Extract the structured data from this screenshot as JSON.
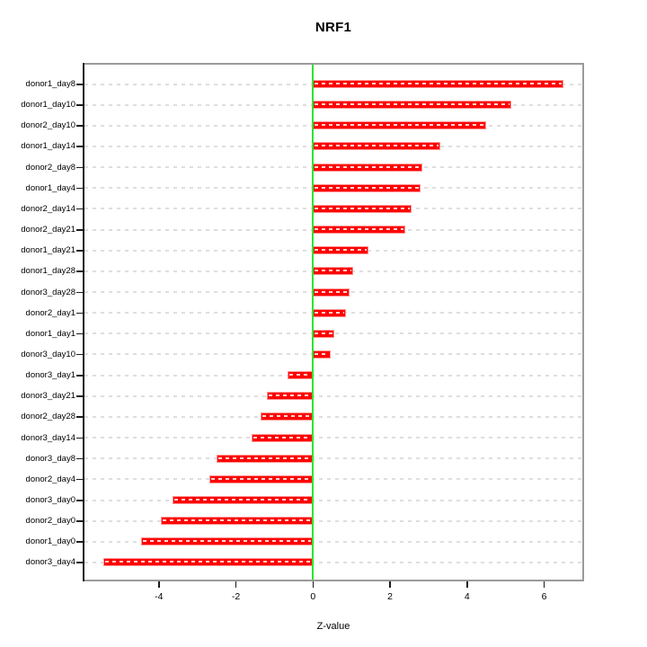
{
  "chart_data": {
    "type": "bar",
    "orientation": "horizontal",
    "title": "NRF1",
    "xlabel": "Z-value",
    "ylabel": "",
    "categories": [
      "donor1_day8",
      "donor1_day10",
      "donor2_day10",
      "donor1_day14",
      "donor2_day8",
      "donor1_day4",
      "donor2_day14",
      "donor2_day21",
      "donor1_day21",
      "donor1_day28",
      "donor3_day28",
      "donor2_day1",
      "donor1_day1",
      "donor3_day10",
      "donor3_day1",
      "donor3_day21",
      "donor2_day28",
      "donor3_day14",
      "donor3_day8",
      "donor2_day4",
      "donor3_day0",
      "donor2_day0",
      "donor1_day0",
      "donor3_day4"
    ],
    "values": [
      6.5,
      5.15,
      4.5,
      3.3,
      2.85,
      2.8,
      2.55,
      2.4,
      1.45,
      1.05,
      0.95,
      0.85,
      0.55,
      0.45,
      -0.65,
      -1.2,
      -1.35,
      -1.6,
      -2.5,
      -2.7,
      -3.65,
      -3.95,
      -4.45,
      -5.45
    ],
    "xlim": [
      -5.93,
      6.99
    ],
    "xticks": [
      -4,
      -2,
      0,
      2,
      4,
      6
    ],
    "zero_line_x": 0,
    "grid": "horizontal-dashed",
    "legend": "none",
    "colors": {
      "bar_fill": "#fe0000",
      "bar_border": "#ff9090",
      "bar_center_dash": "#ffd9d9",
      "zero_line": "#2ee52e",
      "grid_line": "#dedede",
      "box_border": "#9a9a9a",
      "axis_line": "#1b1b1b",
      "text": "#000000",
      "background": "#ffffff"
    }
  }
}
